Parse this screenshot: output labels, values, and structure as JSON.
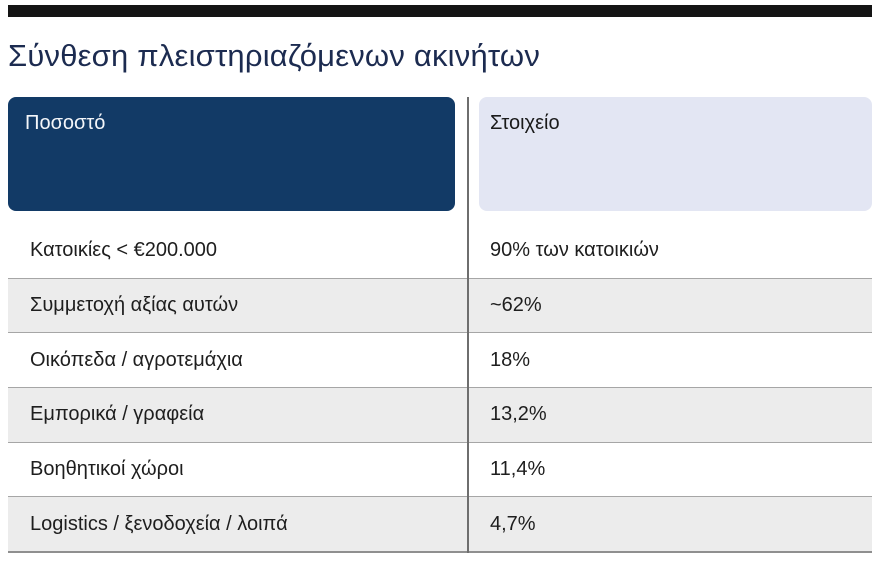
{
  "chart_data": {
    "type": "table",
    "title": "Σύνθεση πλειστηριαζόμενων ακινήτων",
    "columns": [
      "Ποσοστό",
      "Στοιχείο"
    ],
    "rows": [
      [
        "Κατοικίες < €200.000",
        "90% των κατοικιών"
      ],
      [
        "Συμμετοχή αξίας αυτών",
        "~62%"
      ],
      [
        "Οικόπεδα / αγροτεμάχια",
        "18%"
      ],
      [
        "Εμπορικά / γραφεία",
        "13,2%"
      ],
      [
        "Βοηθητικοί χώροι",
        "11,4%"
      ],
      [
        "Logistics / ξενοδοχεία / λοιπά",
        "4,7%"
      ]
    ],
    "layout": {
      "zebra_striping": true,
      "column_divider": true
    }
  },
  "colors": {
    "top_bar": "#141414",
    "title_text": "#1c2b50",
    "header_left_bg": "#123a66",
    "header_left_text": "#f4f6fa",
    "header_right_bg": "#e3e6f3",
    "header_right_text": "#1a1a1a",
    "row_alt_bg": "#ececec",
    "row_border": "#a6a6a6",
    "divider": "#6e6e6e"
  }
}
